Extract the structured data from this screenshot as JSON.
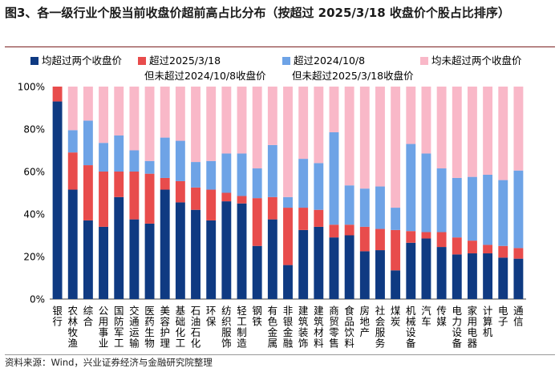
{
  "title": "图3、各一级行业个股当前收盘价超前高占比分布（按超过 2025/3/18 收盘价个股占比排序）",
  "source": "资料来源：Wind，兴业证券经济与金融研究院整理",
  "chart_data": {
    "type": "bar",
    "stacked": true,
    "ylim": [
      0,
      100
    ],
    "ytick_labels": [
      "0%",
      "20%",
      "40%",
      "60%",
      "80%",
      "100%"
    ],
    "categories": [
      "银行",
      "农林牧渔",
      "综合",
      "公用事业",
      "国防军工",
      "交通运输",
      "医药生物",
      "美容护理",
      "基础化工",
      "石油石化",
      "环保",
      "纺织服饰",
      "轻工制造",
      "钢铁",
      "有色金属",
      "非银金融",
      "建筑装饰",
      "建筑材料",
      "商贸零售",
      "食品饮料",
      "房地产",
      "社会服务",
      "煤炭",
      "机械设备",
      "汽车",
      "传媒",
      "电力设备",
      "家用电器",
      "计算机",
      "电子",
      "通信"
    ],
    "series": [
      {
        "name": "均超过两个收盘价",
        "color": "#0f3a82",
        "values": [
          93,
          51.5,
          37,
          34,
          48,
          37.5,
          35.5,
          51.5,
          45.5,
          42,
          37,
          46,
          45,
          25,
          37.5,
          16,
          32.5,
          34,
          29,
          30,
          22.5,
          23,
          13.5,
          26.5,
          28.5,
          24.5,
          21,
          21.5,
          21.5,
          19.5,
          19
        ]
      },
      {
        "name": "超过2025/3/18\n但未超过2024/10/8收盘价",
        "color": "#e84c4c",
        "values": [
          7,
          17.5,
          26,
          26,
          12,
          22.5,
          23.5,
          5.5,
          10,
          10.5,
          14.5,
          4,
          3.5,
          22.5,
          10.5,
          27,
          10.5,
          8,
          6,
          5,
          11.5,
          10,
          19,
          5.5,
          3,
          7,
          8,
          6,
          4,
          5.5,
          5
        ]
      },
      {
        "name": "超过2024/10/8\n但未超过2025/3/18收盘价",
        "color": "#6ea3e6",
        "values": [
          0,
          10.5,
          21,
          13.5,
          17,
          10,
          6,
          19,
          19,
          12,
          13.5,
          18.5,
          20,
          14,
          24.5,
          5,
          23,
          22,
          43.5,
          18.5,
          18,
          20,
          10.5,
          41,
          37,
          30,
          28,
          30,
          33,
          31,
          36.5
        ]
      },
      {
        "name": "均未超过两个收盘价",
        "color": "#f9b8c8",
        "values": [
          0,
          20.5,
          16,
          26.5,
          23,
          30,
          35,
          24,
          25.5,
          35.5,
          35,
          31.5,
          31.5,
          38.5,
          27.5,
          52,
          34,
          36,
          21.5,
          46.5,
          48,
          47,
          57,
          27,
          31.5,
          38.5,
          43,
          42.5,
          41.5,
          44,
          39.5
        ]
      }
    ],
    "legend_position": "top"
  }
}
